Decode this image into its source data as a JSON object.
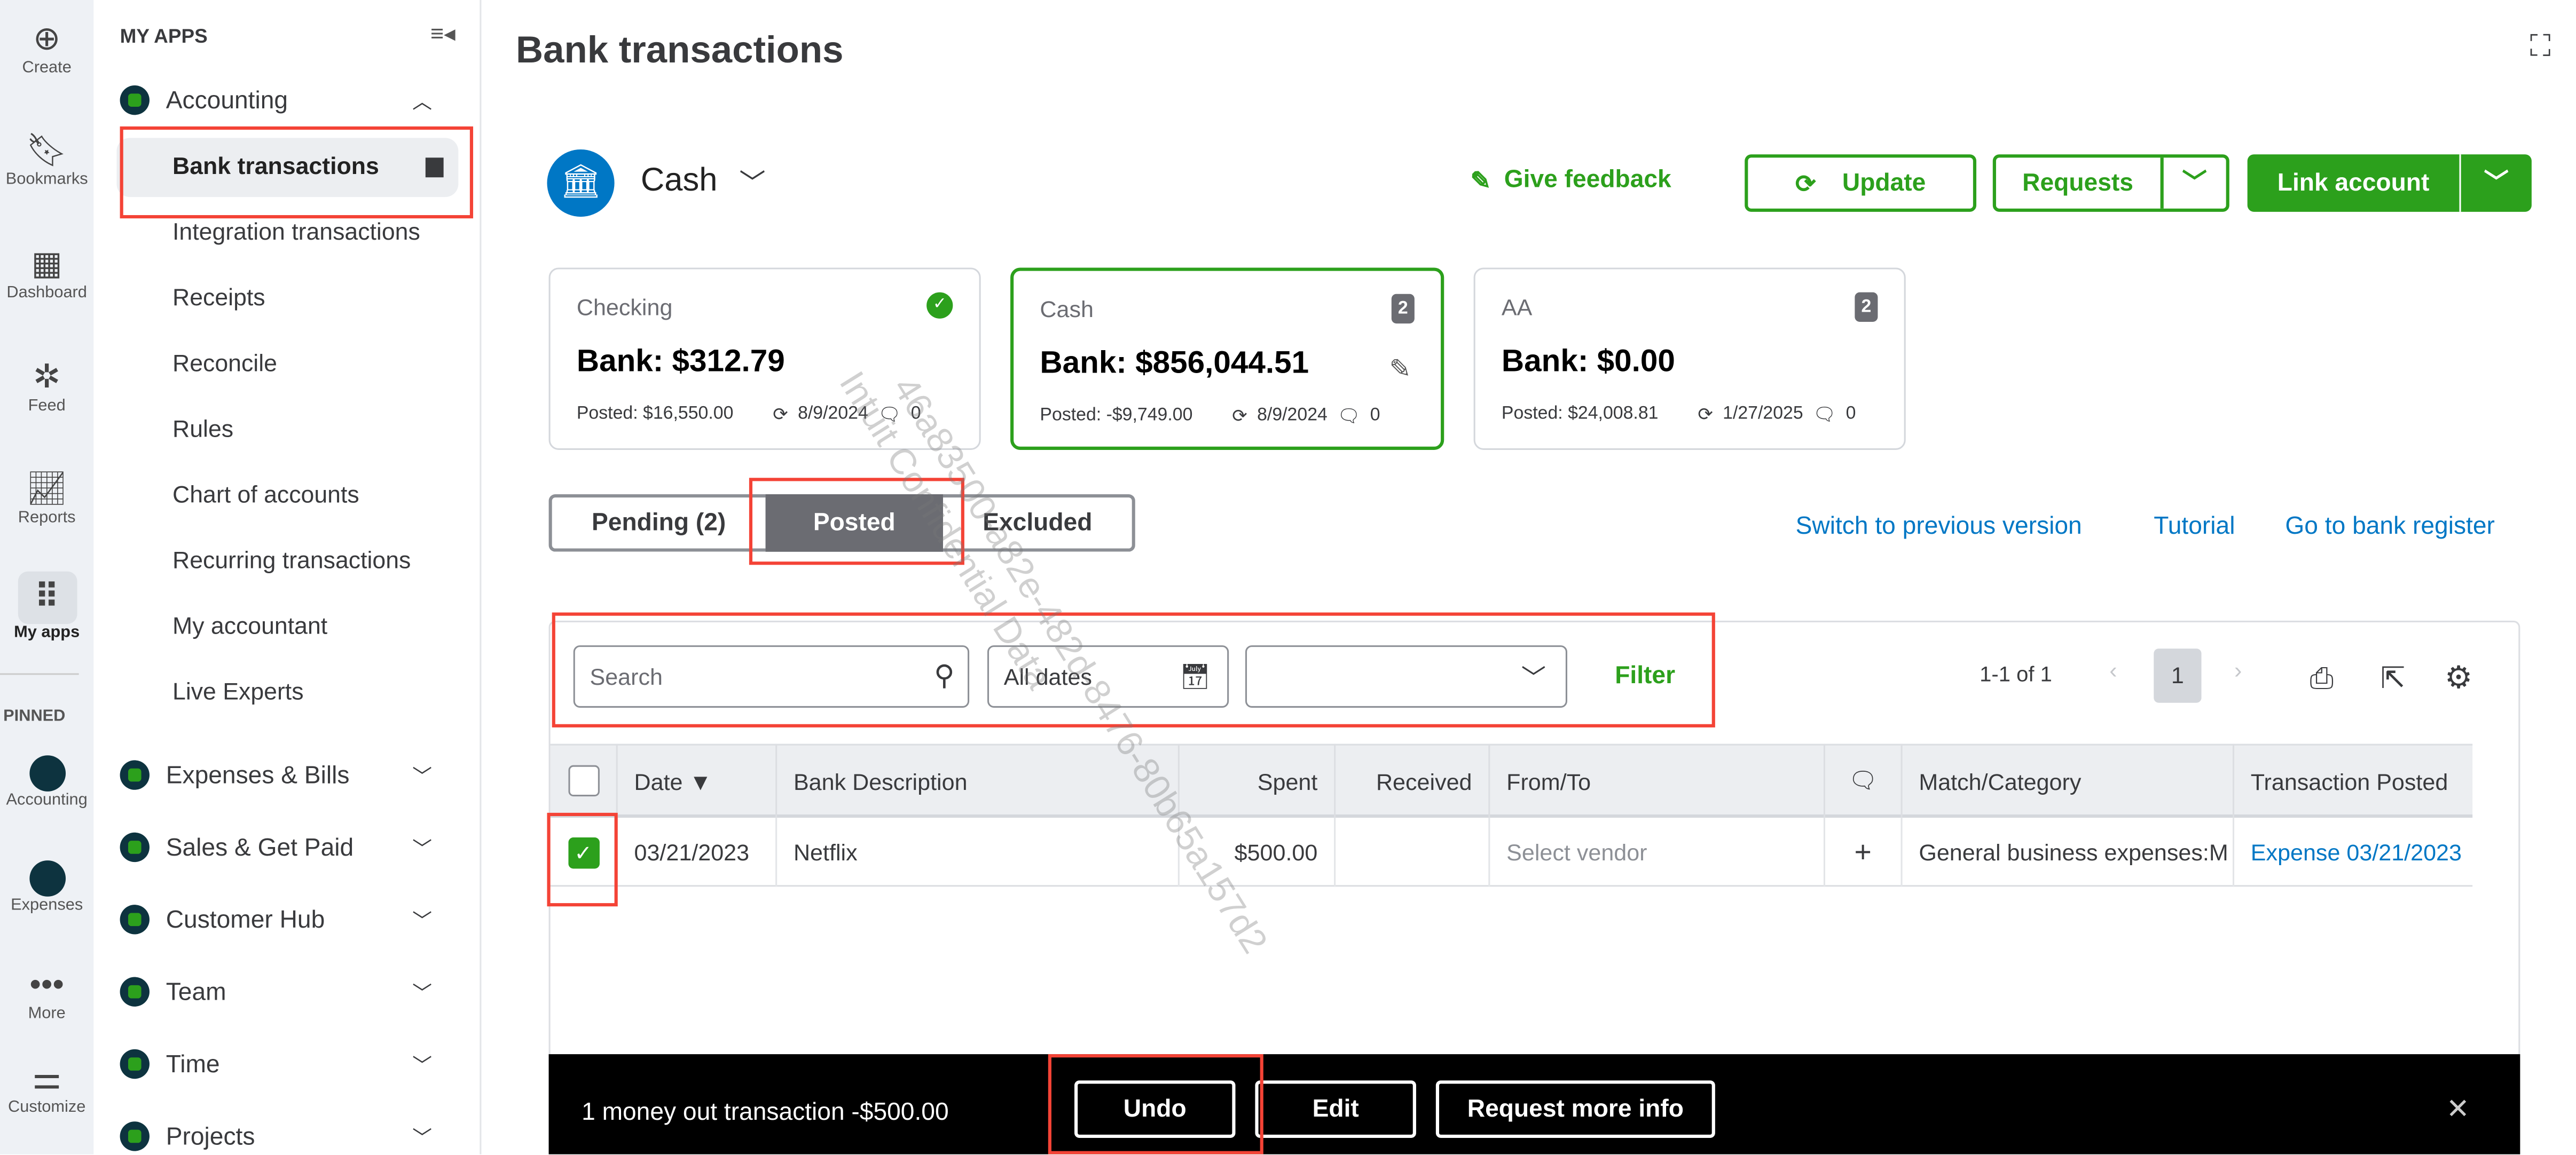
{
  "rail": [
    {
      "icon": "plus-circle-icon",
      "label": "Create"
    },
    {
      "icon": "bookmark-icon",
      "label": "Bookmarks"
    },
    {
      "icon": "dashboard-icon",
      "label": "Dashboard"
    },
    {
      "icon": "feed-icon",
      "label": "Feed"
    },
    {
      "icon": "reports-icon",
      "label": "Reports"
    },
    {
      "icon": "grid-icon",
      "label": "My apps"
    }
  ],
  "rail_pinned": {
    "heading": "PINNED",
    "items": [
      {
        "label": "Accounting"
      },
      {
        "label": "Expenses"
      },
      {
        "label": "More"
      },
      {
        "label": "Customize"
      }
    ]
  },
  "sidebar": {
    "heading": "MY APPS",
    "accounting": "Accounting",
    "sub_items": [
      "Bank transactions",
      "Integration transactions",
      "Receipts",
      "Reconcile",
      "Rules",
      "Chart of accounts",
      "Recurring transactions",
      "My accountant",
      "Live Experts"
    ],
    "apps": [
      "Expenses & Bills",
      "Sales & Get Paid",
      "Customer Hub",
      "Team",
      "Time",
      "Projects"
    ]
  },
  "page": {
    "title": "Bank transactions",
    "account": "Cash"
  },
  "actions": {
    "feedback": "Give feedback",
    "update": "Update",
    "requests": "Requests",
    "link_account": "Link account"
  },
  "cards": [
    {
      "name": "Checking",
      "bank": "Bank: $312.79",
      "posted": "Posted: $16,550.00",
      "date": "8/9/2024",
      "comments": "0",
      "status": "check"
    },
    {
      "name": "Cash",
      "bank": "Bank: $856,044.51",
      "posted": "Posted: -$9,749.00",
      "date": "8/9/2024",
      "comments": "0",
      "badge": "2"
    },
    {
      "name": "AA",
      "bank": "Bank: $0.00",
      "posted": "Posted: $24,008.81",
      "date": "1/27/2025",
      "comments": "0",
      "badge": "2"
    }
  ],
  "tabs": [
    "Pending (2)",
    "Posted",
    "Excluded"
  ],
  "links": [
    "Switch to previous version",
    "Tutorial",
    "Go to bank register"
  ],
  "filters": {
    "search_placeholder": "Search",
    "dates": "All dates",
    "filter": "Filter",
    "pagination": "1-1 of 1",
    "page": "1"
  },
  "table": {
    "headers": [
      "Date ▼",
      "Bank Description",
      "Spent",
      "Received",
      "From/To",
      "Match/Category",
      "Transaction Posted"
    ],
    "rows": [
      {
        "date": "03/21/2023",
        "description": "Netflix",
        "spent": "$500.00",
        "received": "",
        "from_to": "Select vendor",
        "category": "General business expenses:M",
        "posted": "Expense 03/21/2023",
        "checked": true
      }
    ]
  },
  "bottom_bar": {
    "message": "1 money out transaction -$500.00",
    "undo": "Undo",
    "edit": "Edit",
    "request": "Request more info"
  },
  "watermark": {
    "line1": "46a83500-a82e-482d-8476-80b65a157d2",
    "line2": "Intuit Confidential Data"
  },
  "colors": {
    "green": "#2ca01c",
    "blue": "#0077c5",
    "highlight": "#f44336"
  }
}
